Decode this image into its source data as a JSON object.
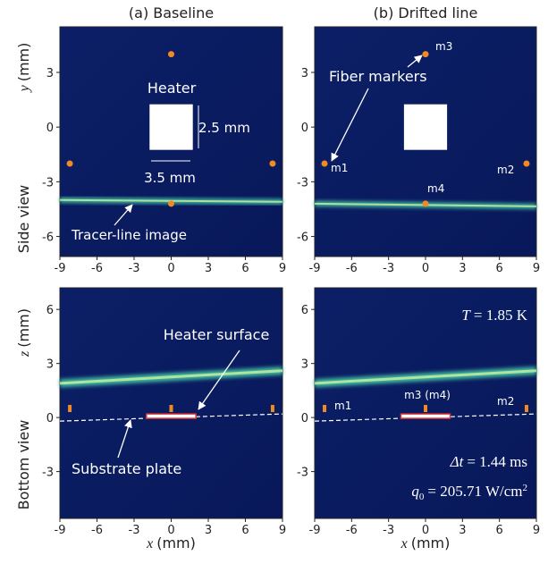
{
  "figure": {
    "columns": [
      "(a) Baseline",
      "(b) Drifted line"
    ],
    "rows": [
      "Side view",
      "Bottom view"
    ],
    "x_axis": {
      "symbol": "x",
      "unit": "(mm)",
      "lim": [
        -9,
        9
      ],
      "ticks": [
        -9,
        -6,
        -3,
        0,
        3,
        6,
        9
      ]
    },
    "side_axis": {
      "symbol": "y",
      "unit": "(mm)",
      "lim": [
        -7.1,
        5.5
      ],
      "ticks": [
        -6,
        -3,
        0,
        3
      ]
    },
    "bottom_axis": {
      "symbol": "z",
      "unit": "(mm)",
      "lim": [
        -5.6,
        7.2
      ],
      "ticks": [
        -3,
        0,
        3,
        6
      ]
    },
    "side_panels": [
      {
        "markers": {
          "x": [
            0,
            -8.2,
            8.2,
            0
          ],
          "y": [
            4,
            -2,
            -2,
            -4.2
          ]
        },
        "tracer": {
          "x": [
            -9,
            9
          ],
          "y": [
            -4.0,
            -4.1
          ]
        },
        "heater_label": "Heater",
        "height_label": "2.5 mm",
        "width_label": "3.5 mm",
        "tracer_label": "Tracer-line image"
      },
      {
        "markers": {
          "x": [
            -8.2,
            8.2,
            0,
            0
          ],
          "y": [
            -2,
            -2,
            4,
            -4.2
          ],
          "labels": [
            "m1",
            "m2",
            "m3",
            "m4"
          ]
        },
        "tracer": {
          "x": [
            -9,
            9
          ],
          "y": [
            -4.2,
            -4.35
          ]
        },
        "fiber_label": "Fiber markers"
      }
    ],
    "bottom_panels": [
      {
        "tracer": {
          "x": [
            -9,
            9
          ],
          "z": [
            1.9,
            2.6
          ]
        },
        "fibers": [
          -8.2,
          0,
          8.2
        ],
        "substrate": {
          "x": [
            -9,
            9
          ],
          "z": [
            -0.2,
            0.2
          ]
        },
        "heater_label": "Heater surface",
        "substrate_label": "Substrate plate"
      },
      {
        "tracer": {
          "x": [
            -9,
            9
          ],
          "z": [
            1.9,
            2.6
          ]
        },
        "fibers": [
          -8.2,
          0,
          8.2
        ],
        "substrate": {
          "x": [
            -9,
            9
          ],
          "z": [
            -0.2,
            0.2
          ]
        },
        "fiber_labels": [
          "m1",
          "m3 (m4)",
          "m2"
        ],
        "temperature": {
          "symbol": "T",
          "text": "= 1.85 K"
        },
        "interval": {
          "symbol": "Δt",
          "text": "= 1.44 ms"
        },
        "heat_flux": {
          "symbol": "q",
          "sub": "0",
          "text": "= 205.71 W/cm",
          "sup": "2"
        }
      }
    ]
  }
}
